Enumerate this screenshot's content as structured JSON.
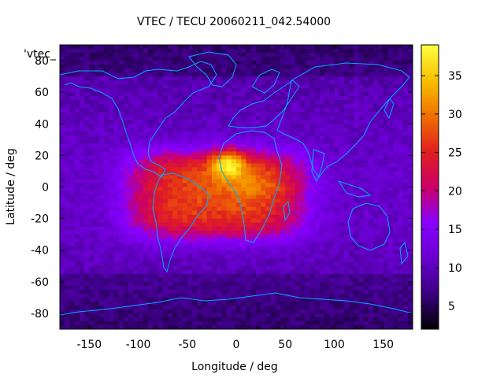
{
  "chart_data": {
    "type": "heatmap",
    "title": "VTEC / TECU 20060211_042.54000",
    "xlabel": "Longitude / deg",
    "ylabel": "Latitude / deg",
    "key_label": "'vtec_",
    "xlim": [
      -180,
      180
    ],
    "ylim": [
      -90,
      90
    ],
    "xticks": [
      -150,
      -100,
      -50,
      0,
      50,
      100,
      150
    ],
    "yticks": [
      -80,
      -60,
      -40,
      -20,
      0,
      20,
      40,
      60,
      80
    ],
    "colorbar": {
      "range": [
        2,
        39
      ],
      "ticks": [
        5,
        10,
        15,
        20,
        25,
        30,
        35
      ],
      "palette": [
        "#000000",
        "#3a0080",
        "#6a00d0",
        "#8800ff",
        "#cc0066",
        "#e02020",
        "#f07000",
        "#f8c000",
        "#ffff40"
      ]
    },
    "background_vtec": 8,
    "anomaly": {
      "description": "Equatorial anomaly plume",
      "center_lon": -20,
      "center_lat": -5,
      "peak_lon": -8,
      "peak_lat": 15,
      "peak_value": 38,
      "plume_value": 24
    },
    "coastline_color": "#00aaff"
  }
}
